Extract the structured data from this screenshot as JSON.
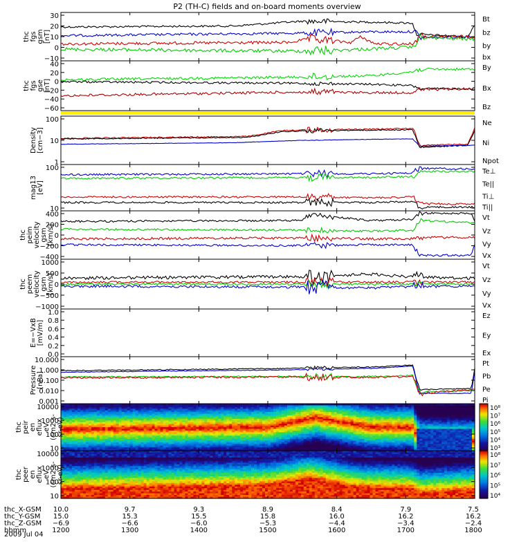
{
  "title": "P2 (TH-C) fields and on-board moments overview",
  "panels": [
    {
      "id": "p1",
      "ylabel": [
        "thc",
        "fgs",
        "gsm",
        "[nT]"
      ],
      "yticks": [
        "30",
        "20",
        "10",
        "0",
        "−10"
      ],
      "legend": [
        {
          "label": "Bt",
          "color": "#000000"
        },
        {
          "label": "bz",
          "color": "#cc0000"
        },
        {
          "label": "by",
          "color": "#00cc00"
        },
        {
          "label": "bx",
          "color": "#0000cc"
        }
      ]
    },
    {
      "id": "p2",
      "ylabel": [
        "thc",
        "fgs",
        "gse",
        "[nT]"
      ],
      "yticks": [
        "40",
        "20",
        "0",
        "−20",
        "−40",
        "−60"
      ],
      "legend": [
        {
          "label": "By",
          "color": "#00dd00"
        },
        {
          "label": "Bx",
          "color": "#000000"
        },
        {
          "label": "Bz",
          "color": "#aa0000"
        }
      ]
    },
    {
      "id": "p3",
      "ylabel": [
        "Density",
        "[cm−3]"
      ],
      "yticks": [
        "100",
        "10",
        "1"
      ],
      "legend": [
        {
          "label": "Ne",
          "color": "#cc0000"
        },
        {
          "label": "Ni",
          "color": "#000000"
        },
        {
          "label": "Npot",
          "color": "#0000cc"
        }
      ]
    },
    {
      "id": "p4",
      "ylabel": [
        "mag13",
        "[eV]"
      ],
      "yticks": [
        "100",
        "10"
      ],
      "legend": [
        {
          "label": "Te⊥",
          "color": "#cc0000"
        },
        {
          "label": "Te||",
          "color": "#000000"
        },
        {
          "label": "Ti⊥",
          "color": "#000000"
        },
        {
          "label": "Ti||",
          "color": "#00cc00"
        }
      ]
    },
    {
      "id": "p5",
      "ylabel": [
        "thc",
        "peim",
        "velocity",
        "gsm",
        "[km/s]"
      ],
      "yticks": [
        "400",
        "200",
        "0",
        "−200",
        "−400"
      ],
      "legend": [
        {
          "label": "Vt",
          "color": "#000000"
        },
        {
          "label": "Vz",
          "color": "#cc0000"
        },
        {
          "label": "Vy",
          "color": "#00cc00"
        },
        {
          "label": "Vx",
          "color": "#0000cc"
        }
      ]
    },
    {
      "id": "p6",
      "ylabel": [
        "thc",
        "peem",
        "velocity",
        "gsm",
        "[km/s]"
      ],
      "yticks": [
        "1000",
        "500",
        "0",
        "−500",
        "−1000"
      ],
      "legend": [
        {
          "label": "Vt",
          "color": "#000000"
        },
        {
          "label": "Vz",
          "color": "#cc0000"
        },
        {
          "label": "Vy",
          "color": "#00cc00"
        },
        {
          "label": "Vx",
          "color": "#0000cc"
        }
      ]
    },
    {
      "id": "p7",
      "ylabel": [
        "E=−VxB",
        "[mV/m]"
      ],
      "yticks": [
        "1.0",
        "0.8",
        "0.6",
        "0.4",
        "0.2",
        "0.0"
      ],
      "legend": [
        {
          "label": "Ez",
          "color": "#cc0000"
        },
        {
          "label": "Ey",
          "color": "#00cc00"
        },
        {
          "label": "Ex",
          "color": "#0000cc"
        }
      ]
    },
    {
      "id": "p8",
      "ylabel": [
        "Pressure",
        "[nPa]"
      ],
      "yticks": [
        "10.000",
        "1.000",
        "0.100",
        "0.010",
        "0.001"
      ],
      "legend": [
        {
          "label": "Pt",
          "color": "#000000"
        },
        {
          "label": "Pb",
          "color": "#cc0000"
        },
        {
          "label": "Pe",
          "color": "#00cc00"
        },
        {
          "label": "Pi",
          "color": "#0000cc"
        }
      ]
    },
    {
      "id": "p9",
      "ylabel": [
        "thc",
        "peir",
        "en",
        "eflux",
        "eV",
        "(cm2-s-",
        "sr-eV)"
      ],
      "yticks": [
        "10000",
        "1000",
        "100",
        "10"
      ],
      "cbar": [
        "10⁸",
        "10⁷",
        "10⁶",
        "10⁵",
        "10⁴",
        "10³"
      ]
    },
    {
      "id": "p10",
      "ylabel": [
        "thc",
        "peer",
        "en",
        "eflux",
        "eV",
        "(cm2-s-",
        "sr-eV)"
      ],
      "yticks": [
        "10000",
        "1000",
        "100",
        "10"
      ],
      "cbar": [
        "10⁸",
        "10⁷",
        "10⁶",
        "10⁵",
        "10⁴"
      ]
    }
  ],
  "footer": {
    "rows": [
      {
        "label": "thc_X-GSM",
        "values": [
          "10.0",
          "9.7",
          "9.3",
          "8.9",
          "8.4",
          "7.9",
          "7.5"
        ]
      },
      {
        "label": "thc_Y-GSM",
        "values": [
          "15.0",
          "15.3",
          "15.5",
          "15.8",
          "16.0",
          "16.2",
          "16.2"
        ]
      },
      {
        "label": "thc_Z-GSM",
        "values": [
          "−6.9",
          "−6.6",
          "−6.0",
          "−5.3",
          "−4.4",
          "−3.4",
          "−2.4"
        ]
      },
      {
        "label": "hhmm",
        "values": [
          "1200",
          "1300",
          "1400",
          "1500",
          "1600",
          "1700",
          "1800"
        ]
      }
    ],
    "date": "2009 Jul 04"
  },
  "chart_data": {
    "type": "line",
    "title": "P2 (TH-C) fields and on-board moments overview",
    "x": [
      "1200",
      "1300",
      "1400",
      "1500",
      "1600",
      "1700",
      "1800"
    ],
    "xlabel": "hhmm",
    "series": [
      {
        "name": "Bt",
        "values": [
          15,
          15,
          15,
          18,
          17,
          16,
          8
        ]
      },
      {
        "name": "bz",
        "values": [
          -3,
          -3,
          -3,
          -2,
          0,
          -2,
          2
        ]
      },
      {
        "name": "by",
        "values": [
          -8,
          -8,
          -8,
          -10,
          -9,
          -6,
          0
        ]
      },
      {
        "name": "bx",
        "values": [
          5,
          5,
          5,
          7,
          6,
          6,
          3
        ]
      },
      {
        "name": "Ne",
        "values": [
          12,
          12,
          14,
          20,
          25,
          22,
          8
        ]
      },
      {
        "name": "Ni",
        "values": [
          11,
          11,
          13,
          18,
          22,
          20,
          5
        ]
      },
      {
        "name": "Npot",
        "values": [
          7,
          8,
          9,
          10,
          12,
          13,
          7
        ]
      },
      {
        "name": "Pt",
        "values": [
          0.35,
          0.35,
          0.4,
          0.5,
          0.6,
          0.7,
          0.05
        ]
      },
      {
        "name": "Pb",
        "values": [
          0.08,
          0.08,
          0.08,
          0.12,
          0.12,
          0.1,
          0.015
        ]
      },
      {
        "name": "Pi",
        "values": [
          0.25,
          0.25,
          0.3,
          0.4,
          0.45,
          0.55,
          0.02
        ]
      }
    ],
    "ylim": [
      -10,
      30
    ]
  }
}
